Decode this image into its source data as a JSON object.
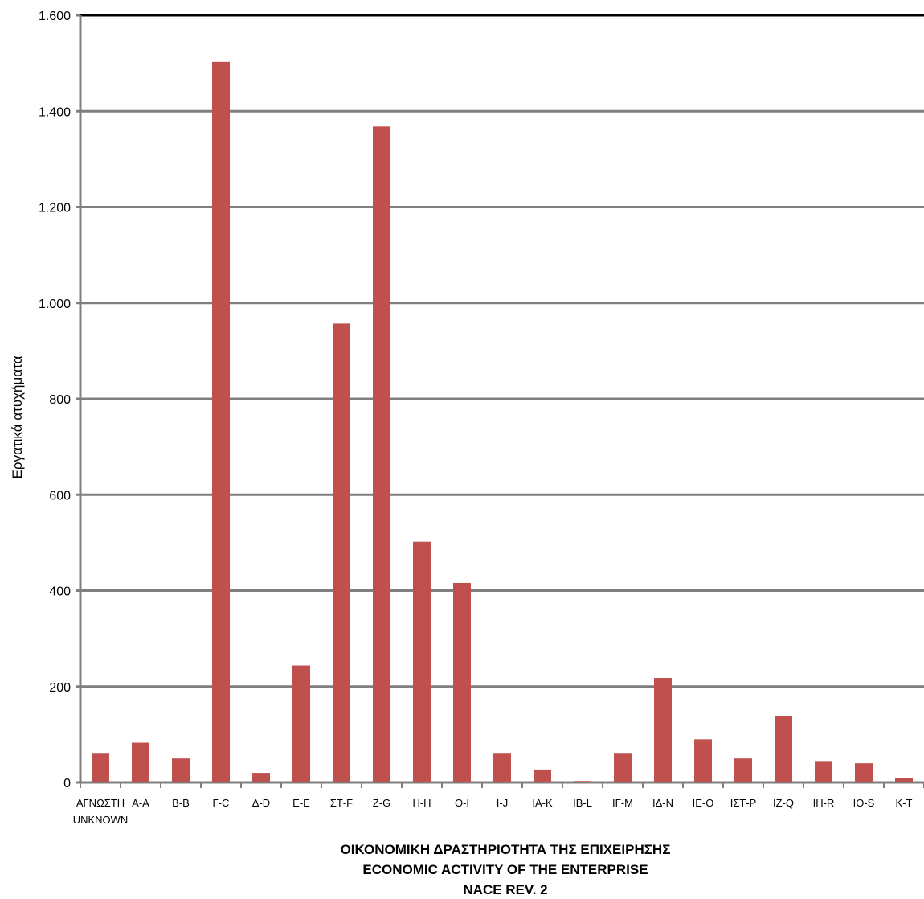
{
  "chart_data": {
    "type": "bar",
    "categories": [
      "ΑΓΝΩΣΤΗ",
      "Α-A",
      "Β-B",
      "Γ-C",
      "Δ-D",
      "Ε-E",
      "ΣΤ-F",
      "Ζ-G",
      "Η-H",
      "Θ-I",
      "Ι-J",
      "ΙΑ-K",
      "ΙΒ-L",
      "ΙΓ-M",
      "ΙΔ-N",
      "ΙΕ-O",
      "ΙΣΤ-P",
      "ΙΖ-Q",
      "ΙΗ-R",
      "ΙΘ-S",
      "Κ-T"
    ],
    "category_sublabel": "UNKNOWN",
    "values": [
      60,
      83,
      50,
      1503,
      20,
      244,
      957,
      1368,
      502,
      416,
      60,
      27,
      3,
      60,
      218,
      90,
      50,
      139,
      43,
      40,
      10
    ],
    "title": "",
    "ylabel": "Εργατικά ατυχήματα",
    "xlabel_lines": [
      "ΟΙΚΟΝΟΜΙΚΗ ΔΡΑΣΤΗΡΙΟΤΗΤΑ ΤΗΣ ΕΠΙΧΕΙΡΗΣΗΣ",
      "ECONOMIC ACTIVITY OF THE ENTERPRISE",
      "NACE REV. 2"
    ],
    "ylim": [
      0,
      1600
    ],
    "yticks": [
      0,
      200,
      400,
      600,
      800,
      1000,
      1200,
      1400,
      1600
    ],
    "ytick_labels": [
      "0",
      "200",
      "400",
      "600",
      "800",
      "1.000",
      "1.200",
      "1.400",
      "1.600"
    ],
    "grid": true,
    "legend": "none",
    "bar_color": "#C0504D",
    "grid_color": "#7F7F7F"
  }
}
